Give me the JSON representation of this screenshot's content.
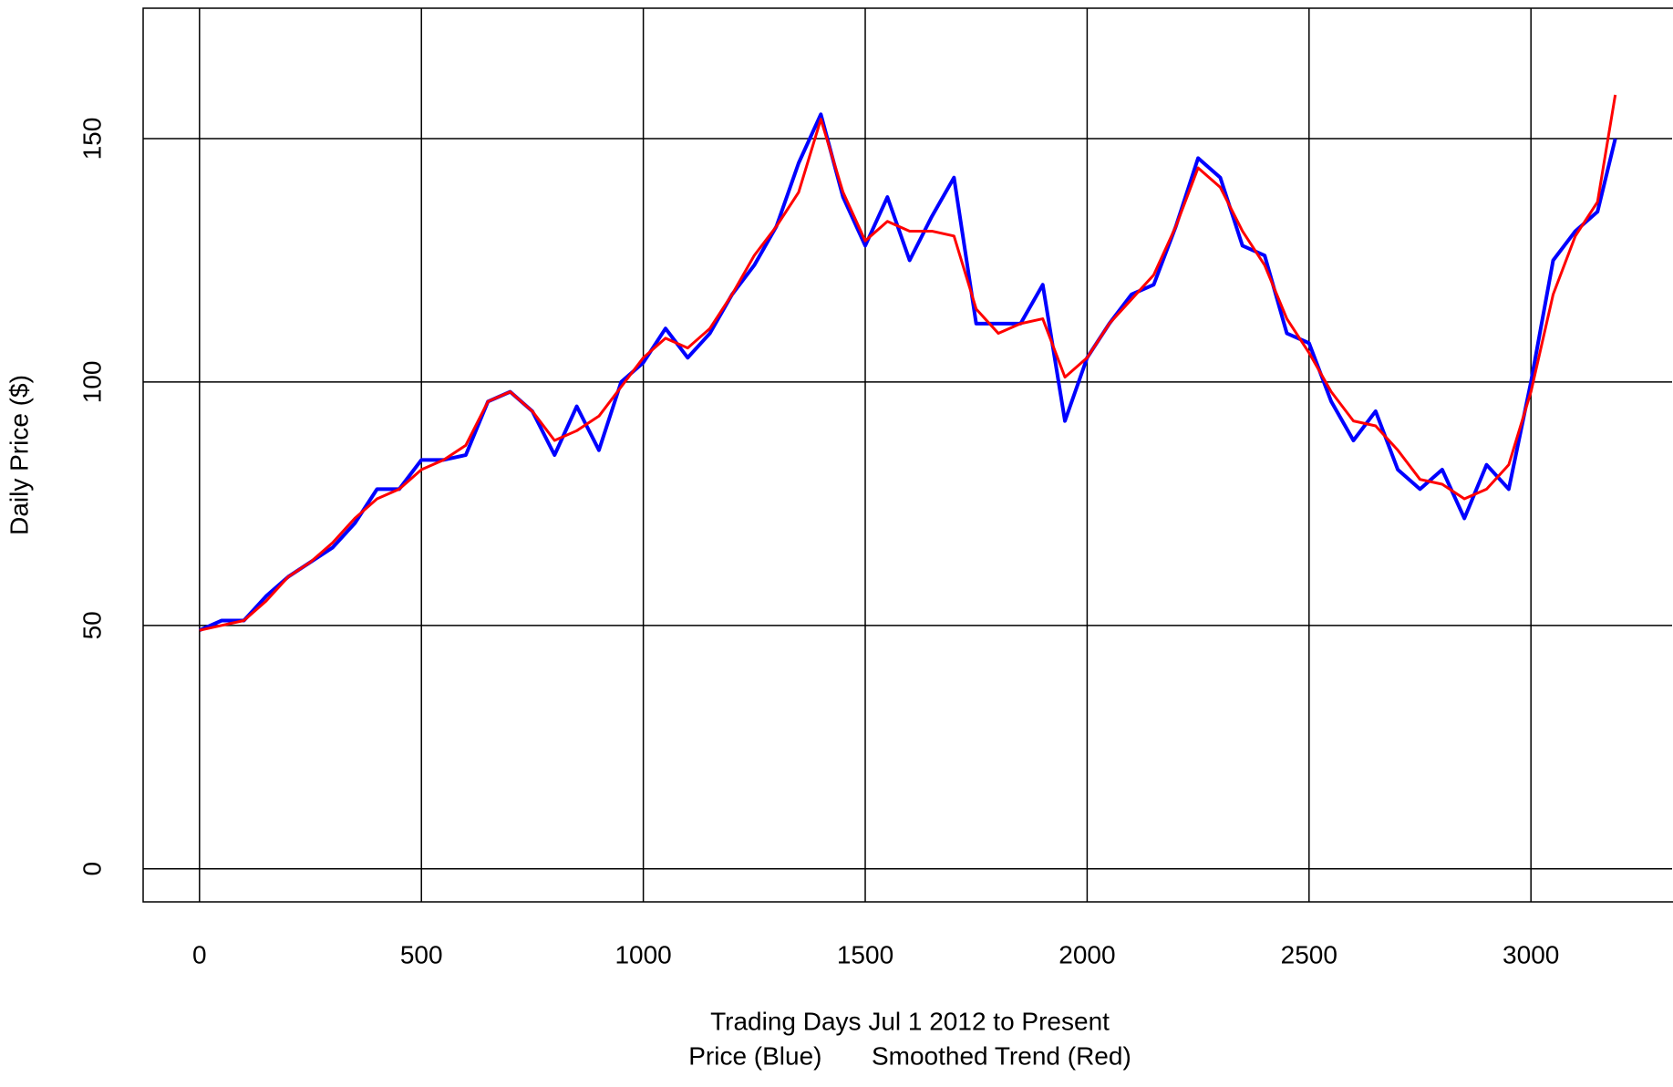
{
  "chart_data": {
    "type": "line",
    "xlabel": "Trading Days Jul 1 2012 to Present",
    "xlabel2": "Price (Blue)       Smoothed Trend (Red)",
    "ylabel": "Daily Price ($)",
    "x": [
      0,
      50,
      100,
      150,
      200,
      250,
      300,
      350,
      400,
      450,
      500,
      550,
      600,
      650,
      700,
      750,
      800,
      850,
      900,
      950,
      1000,
      1050,
      1100,
      1150,
      1200,
      1250,
      1300,
      1350,
      1400,
      1450,
      1500,
      1550,
      1600,
      1650,
      1700,
      1750,
      1800,
      1850,
      1900,
      1950,
      2000,
      2050,
      2100,
      2150,
      2200,
      2250,
      2300,
      2350,
      2400,
      2450,
      2500,
      2550,
      2600,
      2650,
      2700,
      2750,
      2800,
      2850,
      2900,
      2950,
      3000,
      3050,
      3100,
      3150,
      3190
    ],
    "series": [
      {
        "color": "#0000ff",
        "width": 4,
        "values": [
          49,
          51,
          51,
          56,
          60,
          63,
          66,
          71,
          78,
          78,
          84,
          84,
          85,
          96,
          98,
          94,
          85,
          95,
          86,
          100,
          104,
          111,
          105,
          110,
          118,
          124,
          132,
          145,
          155,
          138,
          128,
          138,
          125,
          134,
          142,
          112,
          112,
          112,
          120,
          92,
          105,
          112,
          118,
          120,
          132,
          146,
          142,
          128,
          126,
          110,
          108,
          96,
          88,
          94,
          82,
          78,
          82,
          72,
          83,
          78,
          100,
          125,
          131,
          135,
          150
        ]
      },
      {
        "color": "#ff0000",
        "width": 3,
        "values": [
          49,
          50,
          51,
          55,
          60,
          63,
          67,
          72,
          76,
          78,
          82,
          84,
          87,
          96,
          98,
          94,
          88,
          90,
          93,
          99,
          105,
          109,
          107,
          111,
          118,
          126,
          132,
          139,
          154,
          139,
          129,
          133,
          131,
          131,
          130,
          115,
          110,
          112,
          113,
          101,
          105,
          112,
          117,
          122,
          132,
          144,
          140,
          131,
          124,
          113,
          106,
          98,
          92,
          91,
          86,
          80,
          79,
          76,
          78,
          83,
          98,
          118,
          130,
          137,
          159
        ]
      }
    ],
    "xlim": [
      -127,
      3318
    ],
    "ylim": [
      -6.8,
      176.8
    ],
    "xticks": [
      0,
      500,
      1000,
      1500,
      2000,
      2500,
      3000
    ],
    "yticks": [
      0,
      50,
      100,
      150
    ],
    "grid": true,
    "grid_color": "#000000"
  }
}
